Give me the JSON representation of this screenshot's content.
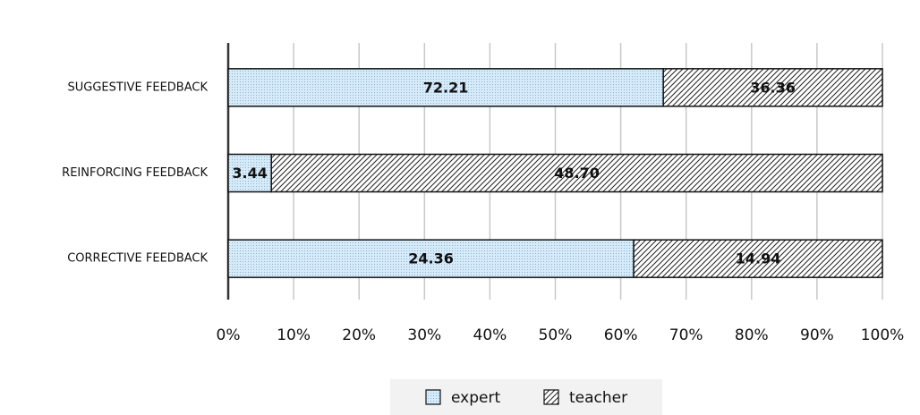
{
  "chart_data": {
    "type": "bar",
    "orientation": "horizontal",
    "stacked": "percent",
    "categories": [
      "SUGGESTIVE FEEDBACK",
      "REINFORCING FEEDBACK",
      "CORRECTIVE FEEDBACK"
    ],
    "series": [
      {
        "name": "expert",
        "color": "#d6ebfa",
        "pattern": "dots",
        "values": [
          72.21,
          3.44,
          24.36
        ],
        "value_labels": [
          "72.21",
          "3.44",
          "24.36"
        ]
      },
      {
        "name": "teacher",
        "color": "#ffffff",
        "pattern": "hatch",
        "values": [
          36.36,
          48.7,
          14.94
        ],
        "value_labels": [
          "36.36",
          "48.70",
          "14.94"
        ]
      }
    ],
    "xlim": [
      0,
      100
    ],
    "xticks": [
      {
        "value": 0,
        "label": "0%"
      },
      {
        "value": 10,
        "label": "10%"
      },
      {
        "value": 20,
        "label": "20%"
      },
      {
        "value": 30,
        "label": "30%"
      },
      {
        "value": 40,
        "label": "40%"
      },
      {
        "value": 50,
        "label": "50%"
      },
      {
        "value": 60,
        "label": "60%"
      },
      {
        "value": 70,
        "label": "70%"
      },
      {
        "value": 80,
        "label": "80%"
      },
      {
        "value": 90,
        "label": "90%"
      },
      {
        "value": 100,
        "label": "100%"
      }
    ],
    "grid": true,
    "legend": "bottom"
  }
}
